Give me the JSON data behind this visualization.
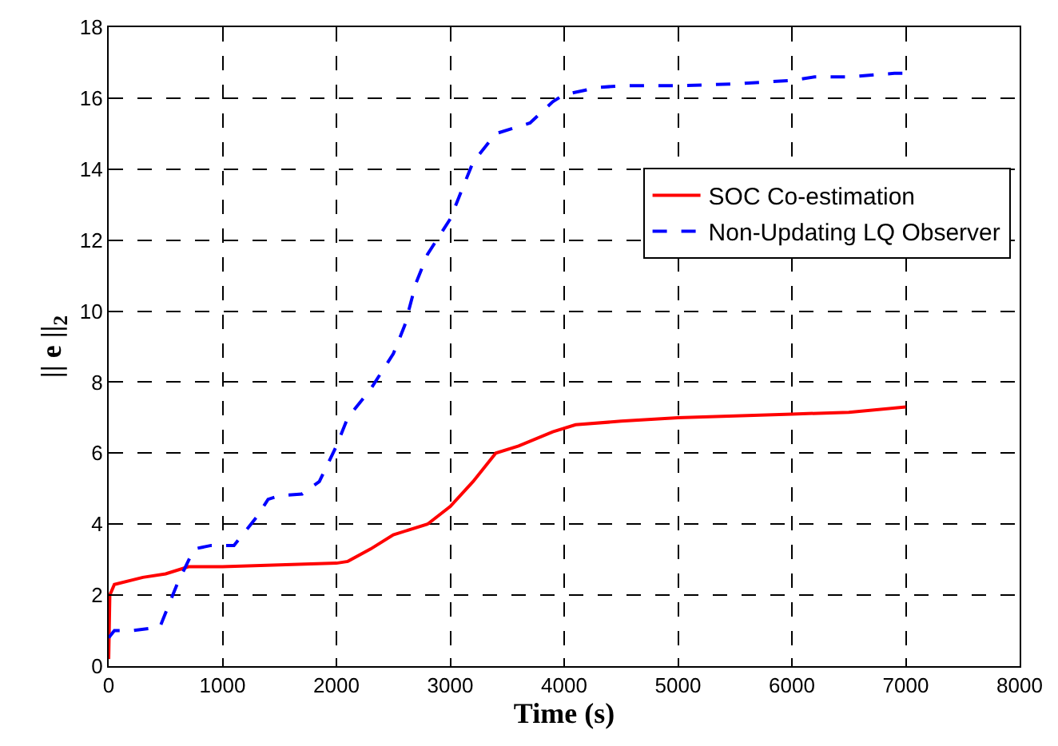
{
  "chart_data": {
    "type": "line",
    "xlabel": "Time (s)",
    "ylabel": "|| e ||$_{2}$",
    "xlim": [
      0,
      8000
    ],
    "ylim": [
      0,
      18
    ],
    "xticks": [
      0,
      1000,
      2000,
      3000,
      4000,
      5000,
      6000,
      7000,
      8000
    ],
    "yticks": [
      0,
      2,
      4,
      6,
      8,
      10,
      12,
      14,
      16,
      18
    ],
    "grid": true,
    "legend": "top right",
    "series": [
      {
        "name": "SOC Co-estimation",
        "color": "#ff0000",
        "line_style": "solid",
        "x": [
          0,
          10,
          50,
          300,
          500,
          700,
          1000,
          1500,
          2000,
          2100,
          2300,
          2500,
          2800,
          3000,
          3200,
          3400,
          3600,
          3900,
          4100,
          4500,
          5000,
          5500,
          6000,
          6500,
          7000
        ],
        "values": [
          0.2,
          2.0,
          2.3,
          2.5,
          2.6,
          2.8,
          2.8,
          2.85,
          2.9,
          2.95,
          3.3,
          3.7,
          4.0,
          4.5,
          5.2,
          6.0,
          6.2,
          6.6,
          6.8,
          6.9,
          7.0,
          7.05,
          7.1,
          7.15,
          7.3
        ]
      },
      {
        "name": "Non-Updating LQ Observer",
        "color": "#0000ff",
        "line_style": "dashed",
        "x": [
          0,
          50,
          200,
          450,
          600,
          750,
          900,
          1100,
          1300,
          1400,
          1500,
          1700,
          1850,
          2000,
          2100,
          2300,
          2500,
          2600,
          2700,
          2800,
          3000,
          3200,
          3400,
          3600,
          3700,
          3900,
          4000,
          4300,
          4500,
          5000,
          5500,
          6000,
          6200,
          6500,
          6900,
          7000
        ],
        "values": [
          0.8,
          1.0,
          1.0,
          1.1,
          2.3,
          3.3,
          3.4,
          3.4,
          4.2,
          4.7,
          4.8,
          4.85,
          5.2,
          6.2,
          7.0,
          7.8,
          8.8,
          9.6,
          10.8,
          11.6,
          12.6,
          14.2,
          15.0,
          15.2,
          15.3,
          15.9,
          16.1,
          16.3,
          16.35,
          16.35,
          16.4,
          16.5,
          16.6,
          16.6,
          16.7,
          16.7
        ]
      }
    ]
  }
}
